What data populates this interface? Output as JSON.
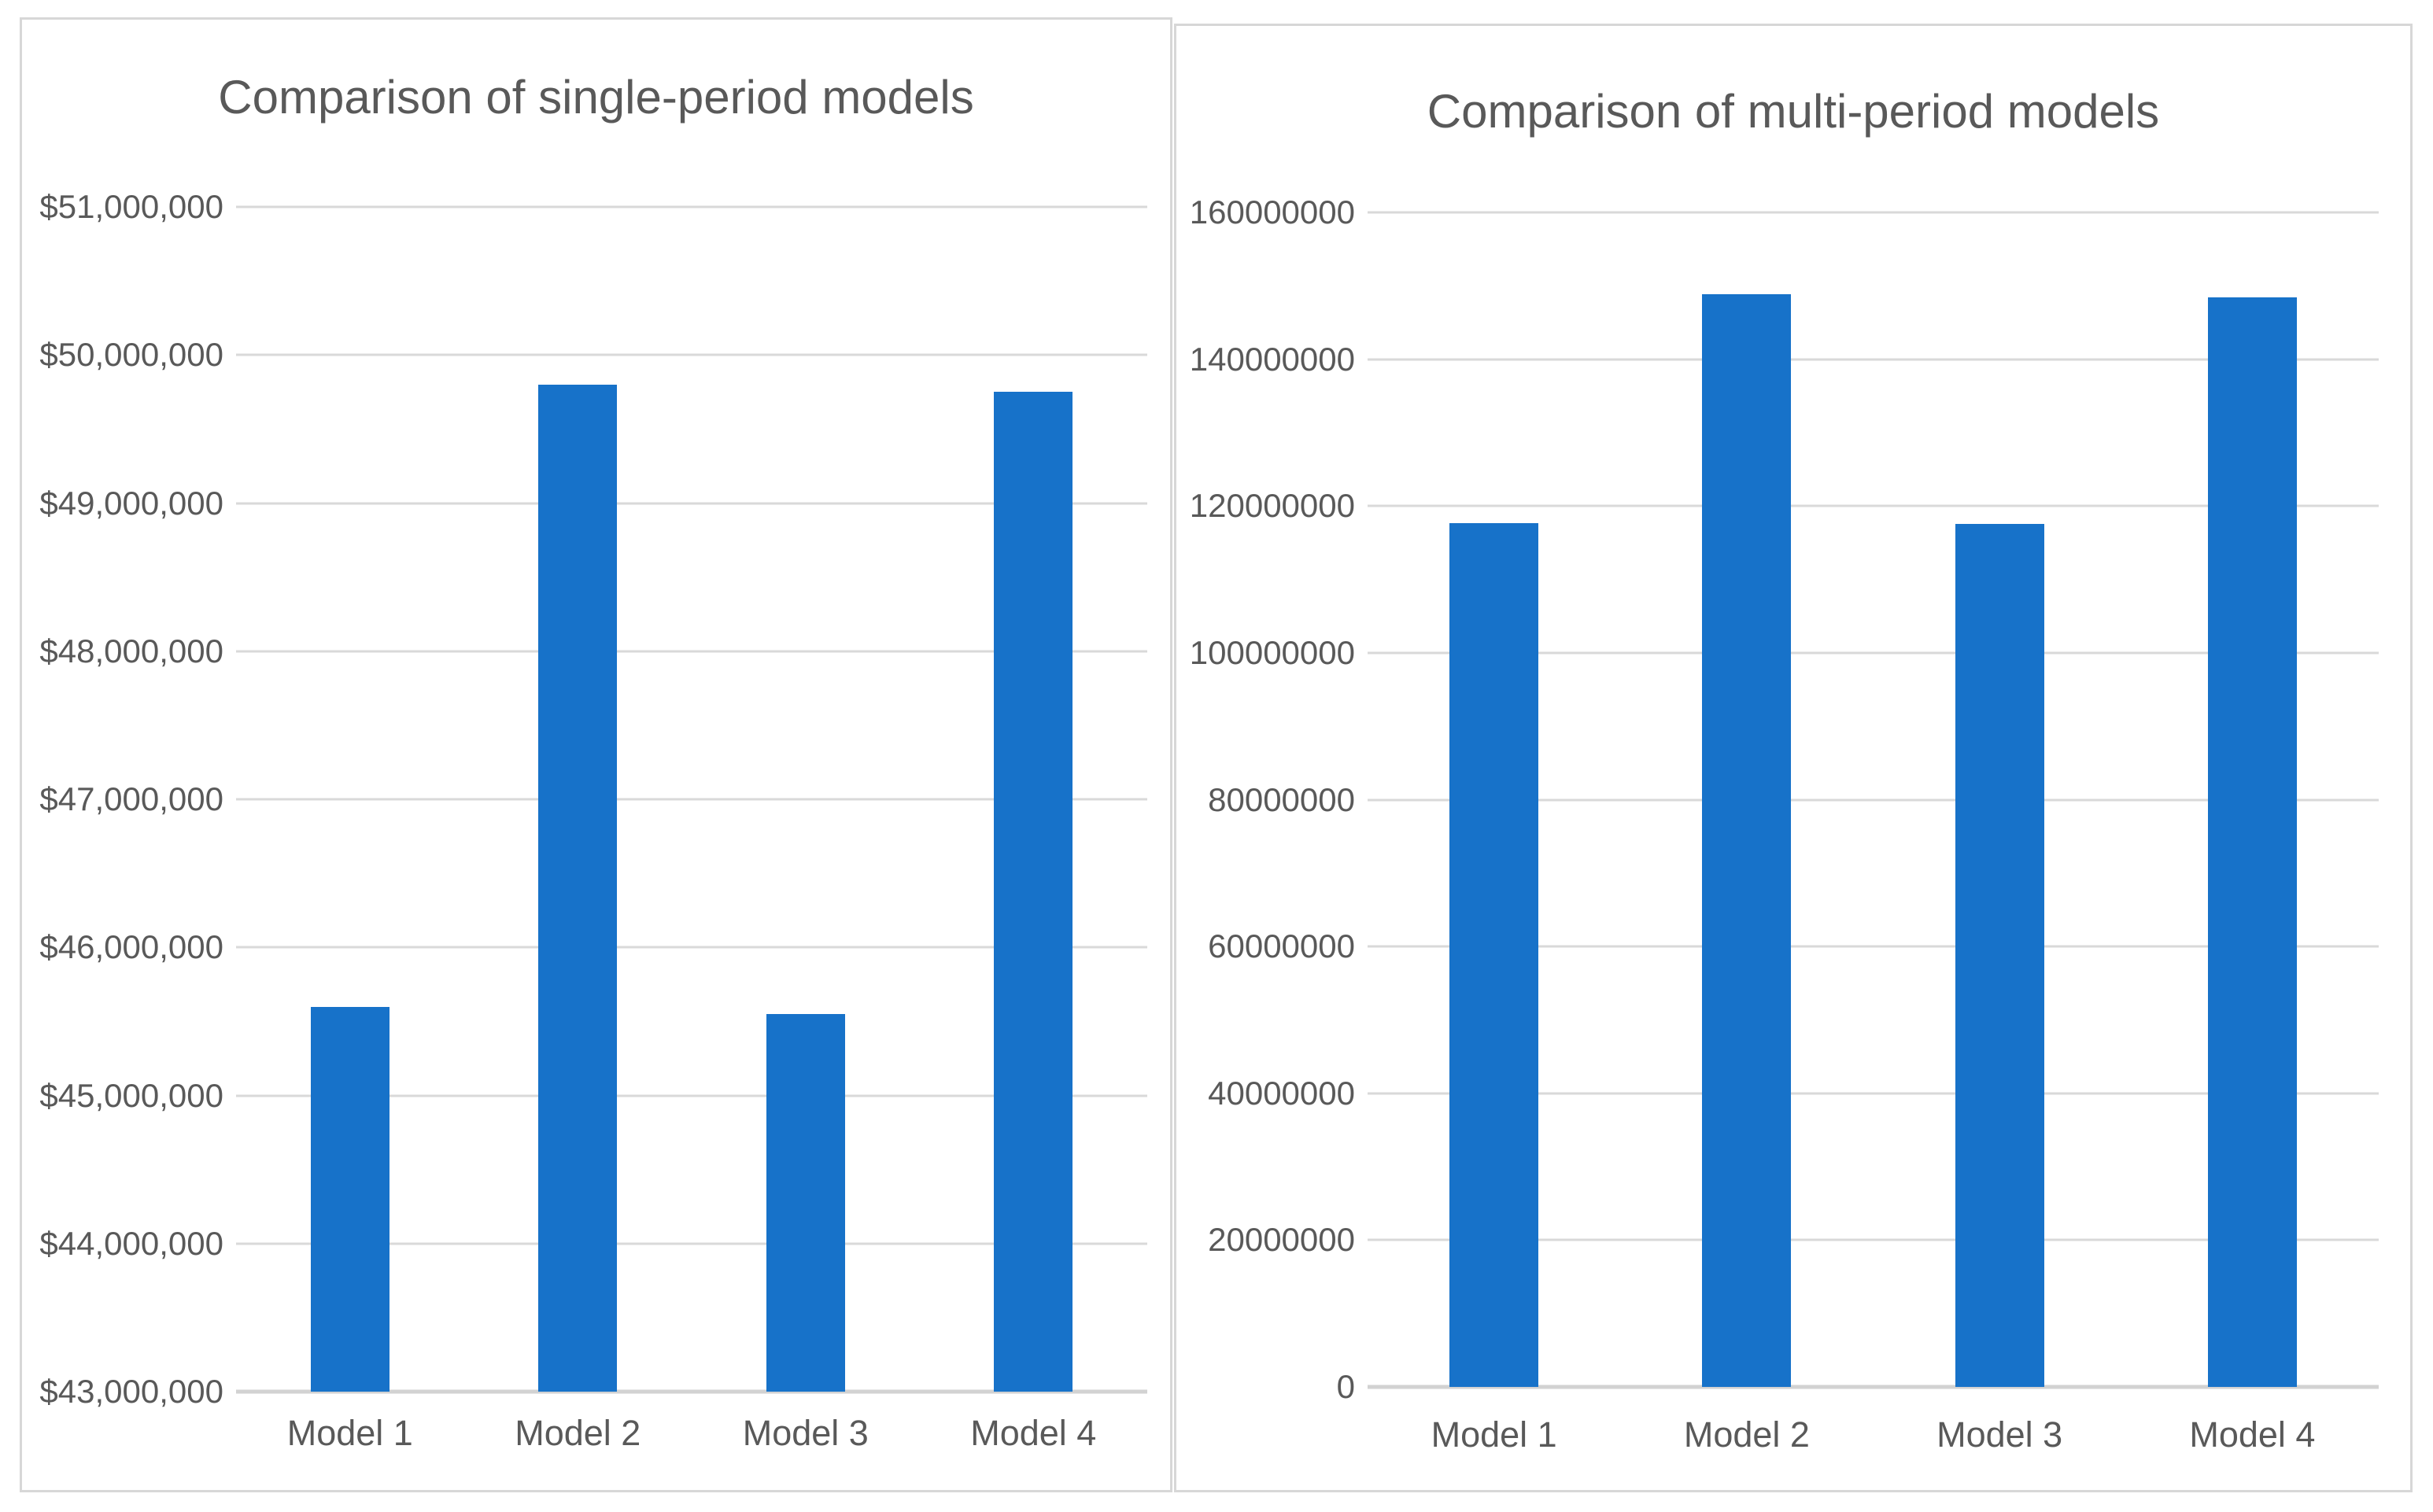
{
  "page": {
    "background": "#ffffff"
  },
  "colors": {
    "bar": "#1772c9",
    "gridline": "#d9d9d9",
    "axis_line": "#d2d2d2",
    "text": "#595959",
    "panel_border": "#d7d7d7",
    "panel_background": "#ffffff"
  },
  "chart_data": [
    {
      "type": "bar",
      "title": "Comparison of single-period models",
      "categories": [
        "Model 1",
        "Model 2",
        "Model 3",
        "Model 4"
      ],
      "values": [
        45600000,
        49800000,
        45550000,
        49750000
      ],
      "ylim": [
        43000000,
        51000000
      ],
      "ytick_step": 1000000,
      "ytick_labels": [
        "$51,000,000",
        "$50,000,000",
        "$49,000,000",
        "$48,000,000",
        "$47,000,000",
        "$46,000,000",
        "$45,000,000",
        "$44,000,000",
        "$43,000,000"
      ],
      "xlabel": "",
      "ylabel": "",
      "grid": true,
      "legend": "none",
      "bar_color": "#1772c9"
    },
    {
      "type": "bar",
      "title": "Comparison of multi-period models",
      "categories": [
        "Model 1",
        "Model 2",
        "Model 3",
        "Model 4"
      ],
      "values": [
        117700000,
        148900000,
        117600000,
        148400000
      ],
      "ylim": [
        0,
        160000000
      ],
      "ytick_step": 20000000,
      "ytick_labels": [
        "160000000",
        "140000000",
        "120000000",
        "100000000",
        "80000000",
        "60000000",
        "40000000",
        "20000000",
        "0"
      ],
      "xlabel": "",
      "ylabel": "",
      "grid": true,
      "legend": "none",
      "bar_color": "#1772c9"
    }
  ]
}
